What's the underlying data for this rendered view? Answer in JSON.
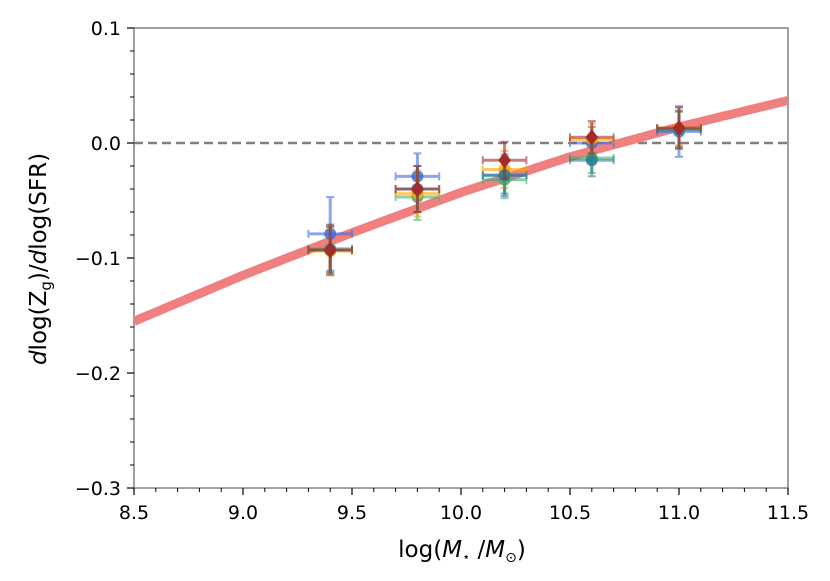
{
  "chart_data": {
    "type": "scatter",
    "title": "",
    "xlabel": "log(M⋆/M⊙)",
    "ylabel": "dlog(Zg)/dlog(SFR)",
    "xlim": [
      8.5,
      11.5
    ],
    "ylim": [
      -0.3,
      0.1
    ],
    "x_ticks": [
      8.5,
      9.0,
      9.5,
      10.0,
      10.5,
      11.0,
      11.5
    ],
    "y_ticks": [
      -0.3,
      -0.2,
      -0.1,
      0.0,
      0.1
    ],
    "x_tick_labels": [
      "8.5",
      "9.0",
      "9.5",
      "10.0",
      "10.5",
      "11.0",
      "11.5"
    ],
    "y_tick_labels": [
      "−0.3",
      "−0.2",
      "−0.1",
      "0.0",
      "0.1"
    ],
    "reference_line": {
      "y": 0.0,
      "style": "dashed",
      "color": "#808080"
    },
    "fit_curve": {
      "color": "#f08080",
      "x": [
        8.5,
        9.0,
        9.5,
        10.0,
        10.5,
        11.0,
        11.5
      ],
      "y": [
        -0.155,
        -0.115,
        -0.078,
        -0.043,
        -0.012,
        0.014,
        0.037
      ]
    },
    "series": [
      {
        "name": "blue",
        "color": "#4169e1",
        "marker": "circle",
        "x": [
          9.4,
          9.8,
          10.2,
          10.6,
          11.0
        ],
        "y": [
          -0.079,
          -0.029,
          -0.028,
          0.0,
          0.01
        ],
        "xerr": [
          0.1,
          0.1,
          0.1,
          0.1,
          0.1
        ],
        "yerr": [
          0.032,
          0.02,
          0.018,
          0.014,
          0.022
        ]
      },
      {
        "name": "green",
        "color": "#3cb371",
        "marker": "circle",
        "x": [
          9.4,
          9.8,
          10.2,
          10.6,
          11.0
        ],
        "y": [
          -0.092,
          -0.047,
          -0.032,
          -0.013,
          0.012
        ],
        "xerr": [
          0.1,
          0.1,
          0.1,
          0.1,
          0.1
        ],
        "yerr": [
          0.02,
          0.02,
          0.016,
          0.013,
          0.015
        ]
      },
      {
        "name": "orange",
        "color": "#ffa500",
        "marker": "circle",
        "x": [
          9.4,
          9.8,
          10.2,
          10.6,
          11.0
        ],
        "y": [
          -0.094,
          -0.044,
          -0.023,
          0.003,
          0.013
        ],
        "xerr": [
          0.1,
          0.1,
          0.1,
          0.1,
          0.1
        ],
        "yerr": [
          0.02,
          0.02,
          0.016,
          0.014,
          0.015
        ]
      },
      {
        "name": "teal",
        "color": "#2f7f8f",
        "marker": "circle",
        "x": [
          9.4,
          9.8,
          10.2,
          10.6,
          11.0
        ],
        "y": [
          -0.093,
          -0.04,
          -0.028,
          -0.015,
          0.012
        ],
        "xerr": [
          0.1,
          0.1,
          0.1,
          0.1,
          0.1
        ],
        "yerr": [
          0.02,
          0.02,
          0.016,
          0.014,
          0.016
        ]
      },
      {
        "name": "dark red",
        "color": "#a52a2a",
        "marker": "diamond",
        "x": [
          9.4,
          9.8,
          10.2,
          10.6,
          11.0
        ],
        "y": [
          -0.093,
          -0.04,
          -0.015,
          0.005,
          0.013
        ],
        "xerr": [
          0.1,
          0.1,
          0.1,
          0.1,
          0.1
        ],
        "yerr": [
          0.022,
          0.02,
          0.016,
          0.014,
          0.018
        ]
      }
    ]
  }
}
